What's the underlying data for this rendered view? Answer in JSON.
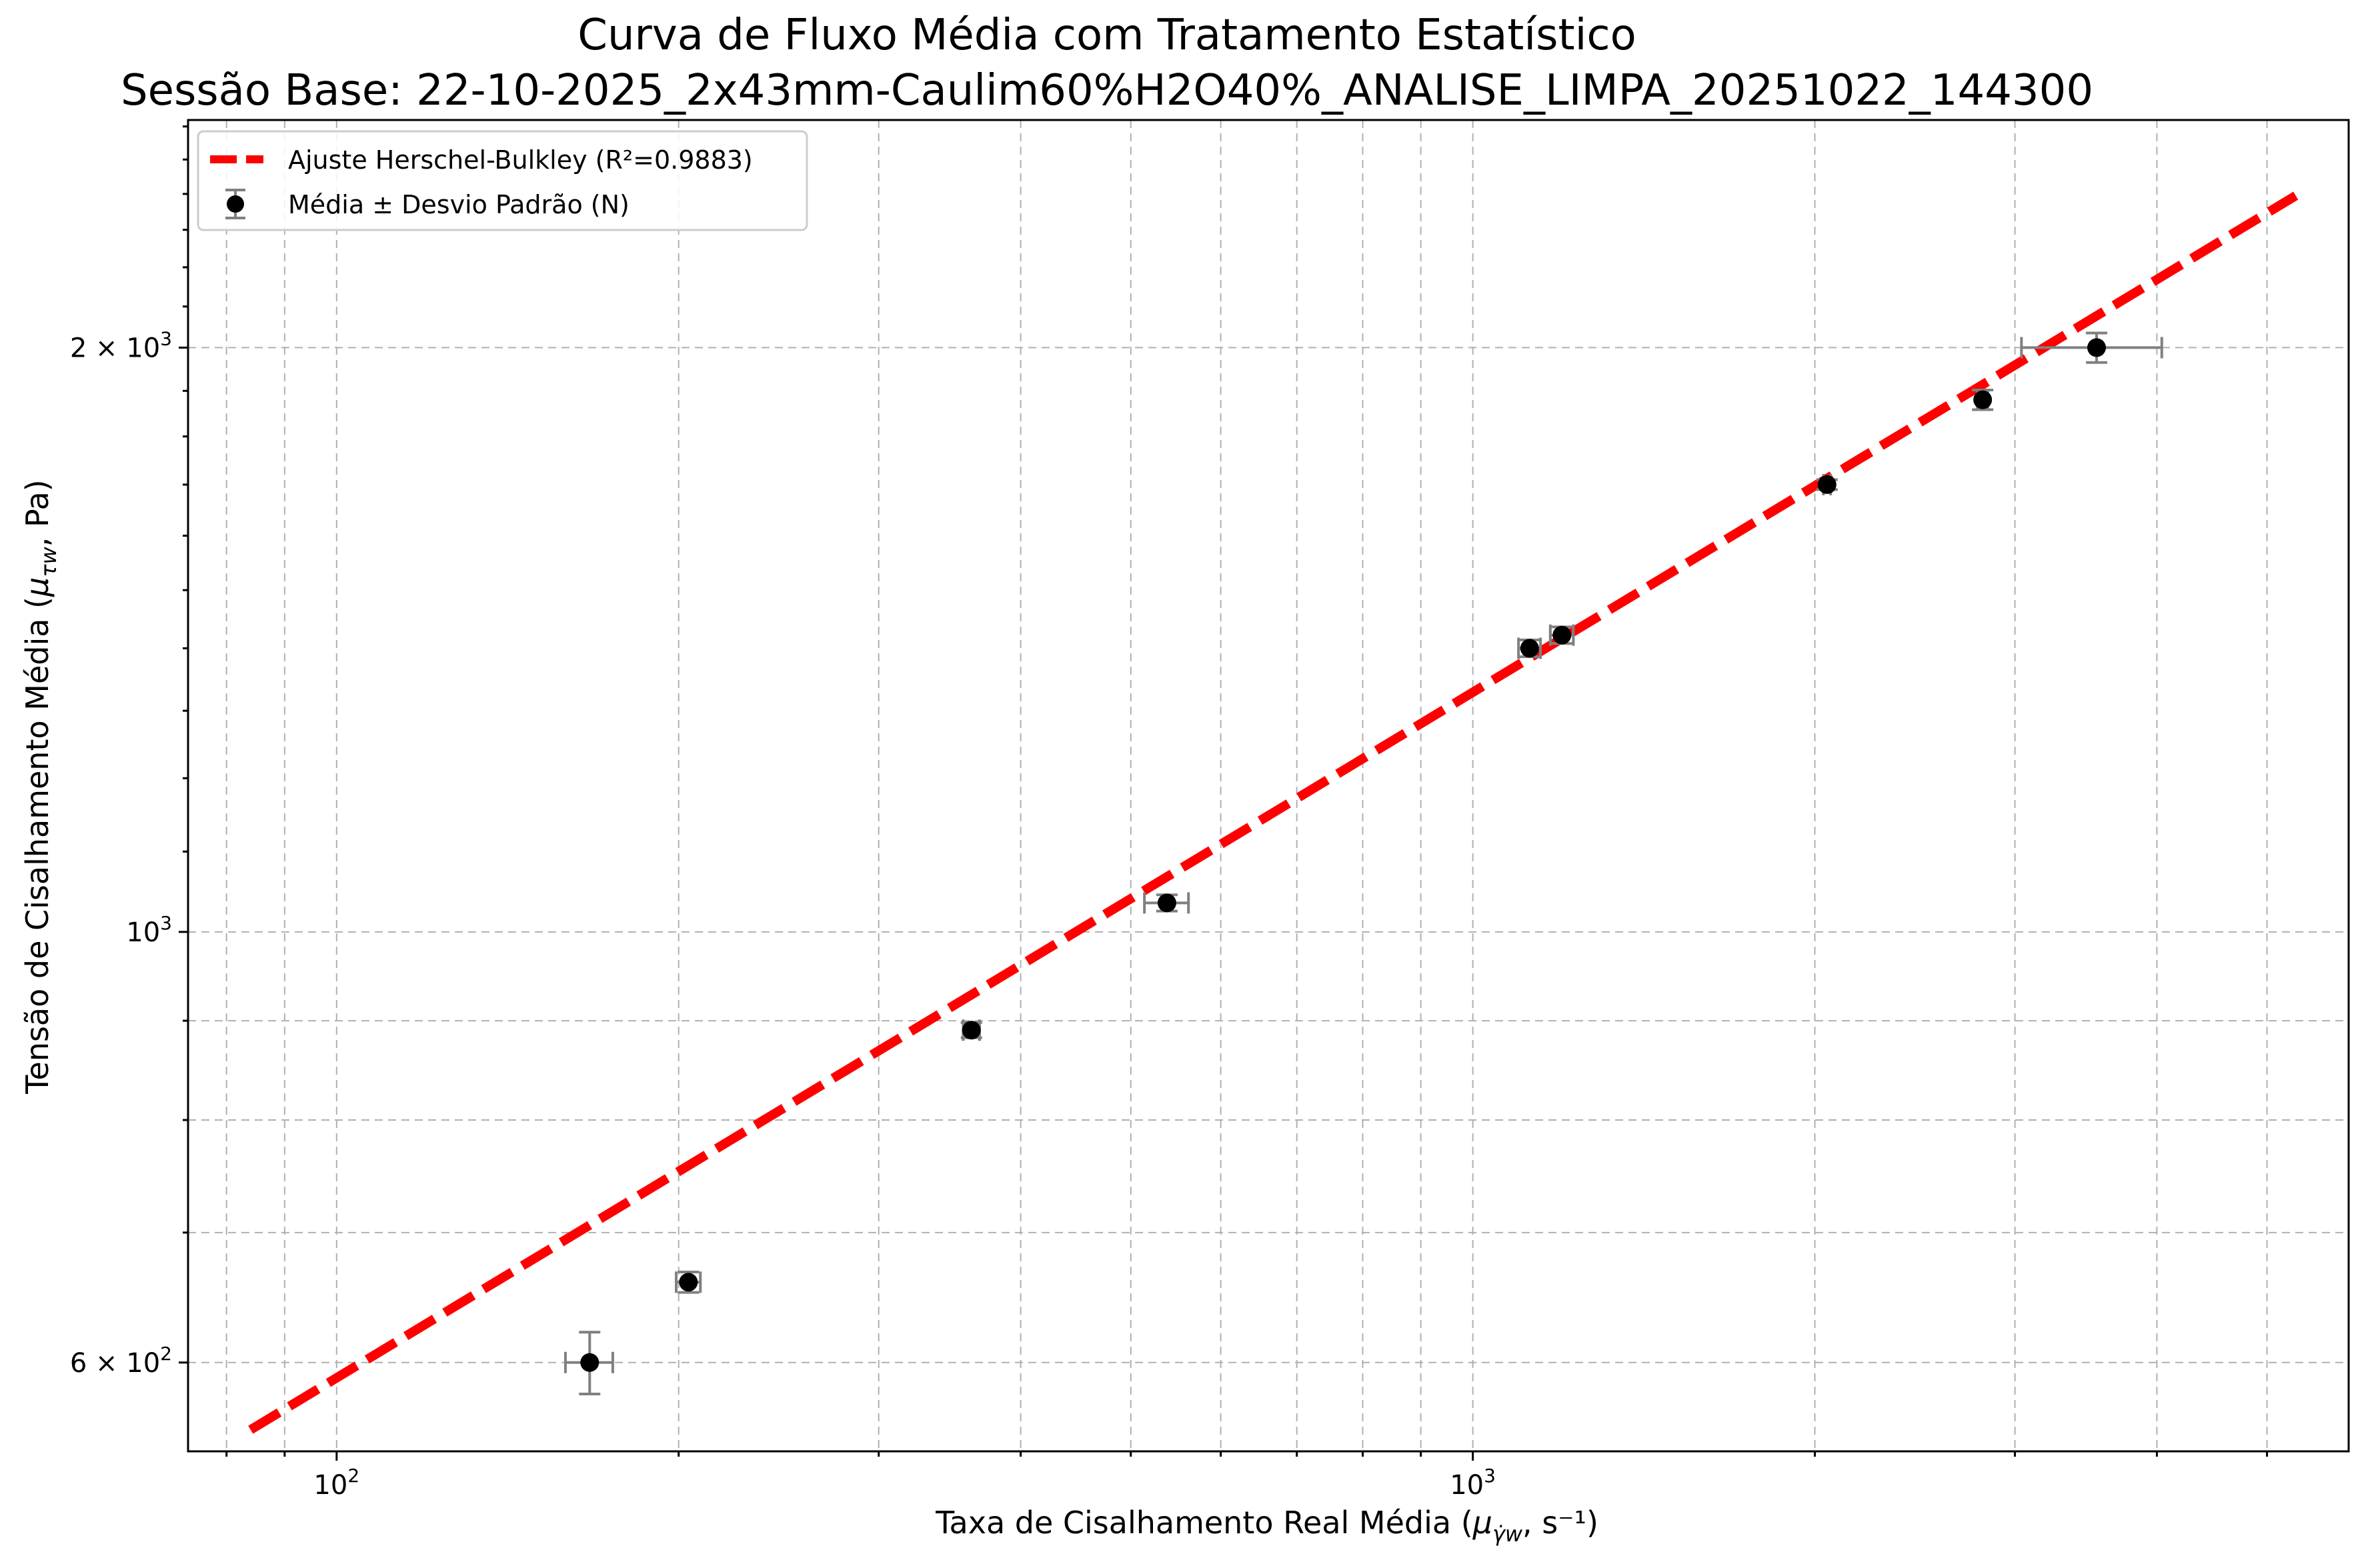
{
  "chart_data": {
    "type": "scatter",
    "title": "Curva de Fluxo Média com Tratamento Estatístico",
    "subtitle": "Sessão Base: 22-10-2025_2x43mm-Caulim60%H2O40%_ANALISE_LIMPA_20251022_144300",
    "xlabel_main": "Taxa de Cisalhamento Real Média (",
    "xlabel_symbol": "μ",
    "xlabel_sub": "γ̇w",
    "xlabel_unit": ", s⁻¹)",
    "ylabel_main": "Tensão de Cisalhamento Média (",
    "ylabel_symbol": "μ",
    "ylabel_sub": "τw",
    "ylabel_unit": ", Pa)",
    "x_scale": "log",
    "y_scale": "log",
    "xlim": [
      74,
      5900
    ],
    "ylim": [
      540,
      2620
    ],
    "grid": true,
    "legend_position": "upper-left",
    "x_ticks": [
      {
        "value": 100,
        "mantissa": "10",
        "exp": "2"
      },
      {
        "value": 1000,
        "mantissa": "10",
        "exp": "3"
      }
    ],
    "y_ticks": [
      {
        "value": 600,
        "coef": "6 × ",
        "mantissa": "10",
        "exp": "2"
      },
      {
        "value": 1000,
        "coef": "",
        "mantissa": "10",
        "exp": "3"
      },
      {
        "value": 2000,
        "coef": "2 × ",
        "mantissa": "10",
        "exp": "3"
      }
    ],
    "y_minor_gridlines": [
      700,
      800,
      900
    ],
    "series": [
      {
        "name": "Ajuste Herschel-Bulkley (R²=0.9883)",
        "kind": "fit-line",
        "color": "#ff0000",
        "x": [
          84,
          5300
        ],
        "y": [
          554,
          2395
        ]
      },
      {
        "name": "Média ± Desvio Padrão (N)",
        "kind": "errorbar",
        "marker_color": "#000000",
        "errorbar_color": "#808080",
        "points": [
          {
            "x": 167,
            "y": 600,
            "xerr": 8,
            "yerr": 22
          },
          {
            "x": 204,
            "y": 660,
            "xerr": 5,
            "yerr": 8
          },
          {
            "x": 362,
            "y": 890,
            "xerr": 6,
            "yerr": 8
          },
          {
            "x": 538,
            "y": 1035,
            "xerr": 24,
            "yerr": 10
          },
          {
            "x": 1122,
            "y": 1400,
            "xerr": 25,
            "yerr": 14
          },
          {
            "x": 1198,
            "y": 1422,
            "xerr": 28,
            "yerr": 14
          },
          {
            "x": 2050,
            "y": 1700,
            "xerr": 15,
            "yerr": 10
          },
          {
            "x": 2810,
            "y": 1880,
            "xerr": 30,
            "yerr": 22
          },
          {
            "x": 3540,
            "y": 2000,
            "xerr": 500,
            "yerr": 35
          }
        ]
      }
    ]
  }
}
